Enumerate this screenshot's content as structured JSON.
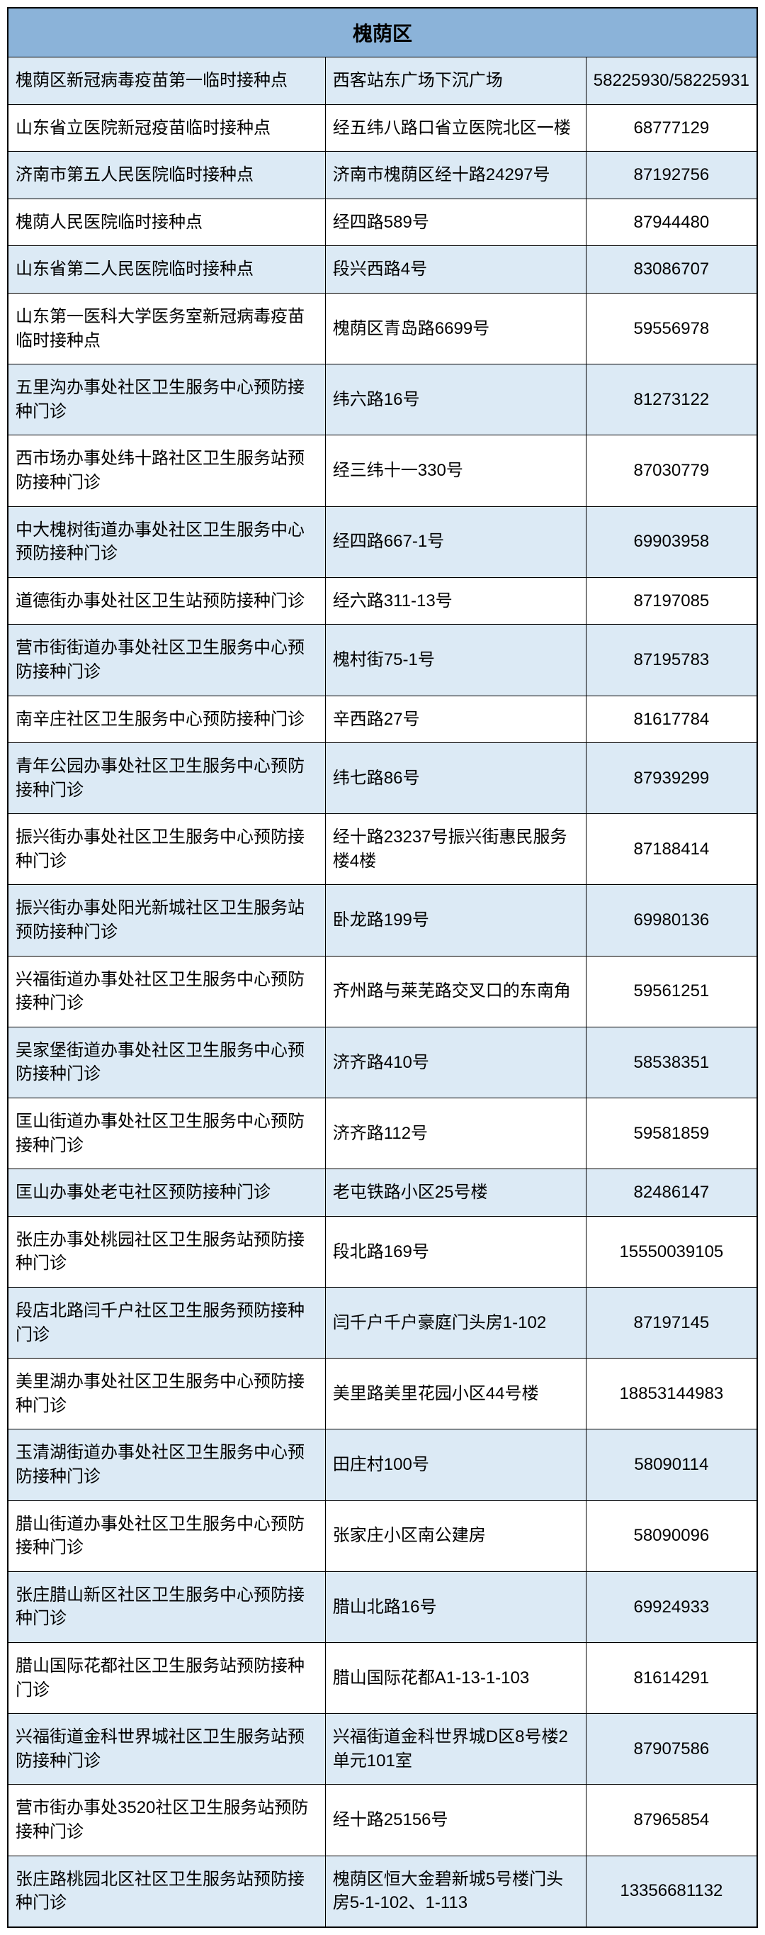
{
  "table": {
    "header": "槐荫区",
    "header_bg_color": "#8bb3d9",
    "even_row_bg": "#dceaf5",
    "odd_row_bg": "#ffffff",
    "border_color": "#000000",
    "text_color": "#000000",
    "header_fontsize": 28,
    "cell_fontsize": 24,
    "columns": [
      "name",
      "address",
      "phone"
    ],
    "column_widths": [
      "44%",
      "36%",
      "20%"
    ],
    "rows": [
      {
        "name": "槐荫区新冠病毒疫苗第一临时接种点",
        "address": "西客站东广场下沉广场",
        "phone": "58225930/58225931"
      },
      {
        "name": "山东省立医院新冠疫苗临时接种点",
        "address": "经五纬八路口省立医院北区一楼",
        "phone": "68777129"
      },
      {
        "name": "济南市第五人民医院临时接种点",
        "address": "济南市槐荫区经十路24297号",
        "phone": "87192756"
      },
      {
        "name": "槐荫人民医院临时接种点",
        "address": "经四路589号",
        "phone": "87944480"
      },
      {
        "name": "山东省第二人民医院临时接种点",
        "address": "段兴西路4号",
        "phone": "83086707"
      },
      {
        "name": "山东第一医科大学医务室新冠病毒疫苗临时接种点",
        "address": "槐荫区青岛路6699号",
        "phone": "59556978"
      },
      {
        "name": "五里沟办事处社区卫生服务中心预防接种门诊",
        "address": "纬六路16号",
        "phone": "81273122"
      },
      {
        "name": "西市场办事处纬十路社区卫生服务站预防接种门诊",
        "address": "经三纬十一330号",
        "phone": "87030779"
      },
      {
        "name": "中大槐树街道办事处社区卫生服务中心预防接种门诊",
        "address": "经四路667-1号",
        "phone": "69903958"
      },
      {
        "name": "道德街办事处社区卫生站预防接种门诊",
        "address": "经六路311-13号",
        "phone": "87197085"
      },
      {
        "name": "营市街街道办事处社区卫生服务中心预防接种门诊",
        "address": "槐村街75-1号",
        "phone": "87195783"
      },
      {
        "name": "南辛庄社区卫生服务中心预防接种门诊",
        "address": "辛西路27号",
        "phone": "81617784"
      },
      {
        "name": "青年公园办事处社区卫生服务中心预防接种门诊",
        "address": "纬七路86号",
        "phone": "87939299"
      },
      {
        "name": "振兴街办事处社区卫生服务中心预防接种门诊",
        "address": "经十路23237号振兴街惠民服务楼4楼",
        "phone": "87188414"
      },
      {
        "name": "振兴街办事处阳光新城社区卫生服务站预防接种门诊",
        "address": "卧龙路199号",
        "phone": "69980136"
      },
      {
        "name": "兴福街道办事处社区卫生服务中心预防接种门诊",
        "address": "齐州路与莱芜路交叉口的东南角",
        "phone": "59561251"
      },
      {
        "name": "吴家堡街道办事处社区卫生服务中心预防接种门诊",
        "address": "济齐路410号",
        "phone": "58538351"
      },
      {
        "name": "匡山街道办事处社区卫生服务中心预防接种门诊",
        "address": "济齐路112号",
        "phone": "59581859"
      },
      {
        "name": "匡山办事处老屯社区预防接种门诊",
        "address": "老屯铁路小区25号楼",
        "phone": "82486147"
      },
      {
        "name": "张庄办事处桃园社区卫生服务站预防接种门诊",
        "address": "段北路169号",
        "phone": "15550039105"
      },
      {
        "name": "段店北路闫千户社区卫生服务预防接种门诊",
        "address": "闫千户千户豪庭门头房1-102",
        "phone": "87197145"
      },
      {
        "name": "美里湖办事处社区卫生服务中心预防接种门诊",
        "address": "美里路美里花园小区44号楼",
        "phone": "18853144983"
      },
      {
        "name": "玉清湖街道办事处社区卫生服务中心预防接种门诊",
        "address": "田庄村100号",
        "phone": "58090114"
      },
      {
        "name": "腊山街道办事处社区卫生服务中心预防接种门诊",
        "address": "张家庄小区南公建房",
        "phone": "58090096"
      },
      {
        "name": "张庄腊山新区社区卫生服务中心预防接种门诊",
        "address": "腊山北路16号",
        "phone": "69924933"
      },
      {
        "name": "腊山国际花都社区卫生服务站预防接种门诊",
        "address": "腊山国际花都A1-13-1-103",
        "phone": "81614291"
      },
      {
        "name": "兴福街道金科世界城社区卫生服务站预防接种门诊",
        "address": "兴福街道金科世界城D区8号楼2单元101室",
        "phone": "87907586"
      },
      {
        "name": "营市街办事处3520社区卫生服务站预防接种门诊",
        "address": "经十路25156号",
        "phone": "87965854"
      },
      {
        "name": "张庄路桃园北区社区卫生服务站预防接种门诊",
        "address": "槐荫区恒大金碧新城5号楼门头房5-1-102、1-113",
        "phone": "13356681132"
      }
    ]
  }
}
